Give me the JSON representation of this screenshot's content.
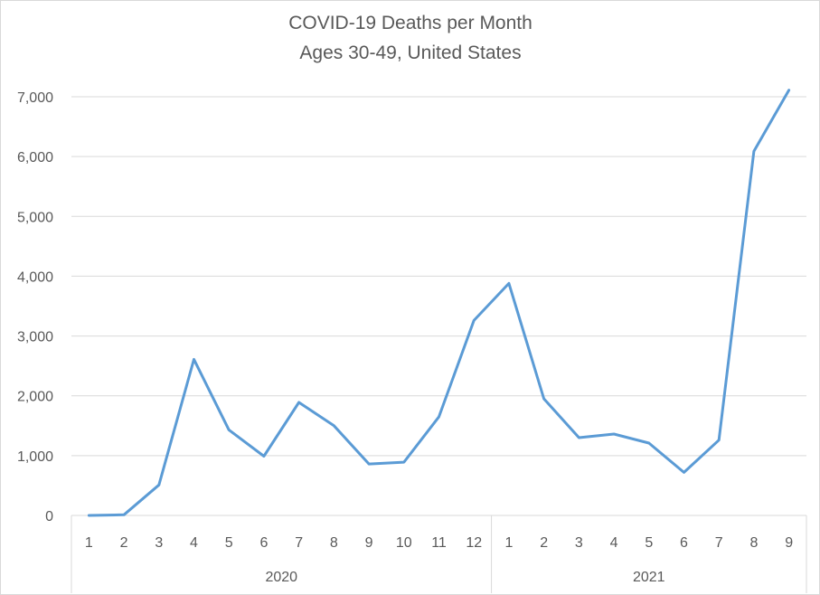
{
  "chart_data": {
    "type": "line",
    "title": "COVID-19 Deaths per Month",
    "subtitle": "Ages 30-49, United States",
    "xlabel": "",
    "ylabel": "",
    "ylim": [
      0,
      7000
    ],
    "y_ticks": [
      0,
      1000,
      2000,
      3000,
      4000,
      5000,
      6000,
      7000
    ],
    "y_tick_labels": [
      "0",
      "1,000",
      "2,000",
      "3,000",
      "4,000",
      "5,000",
      "6,000",
      "7,000"
    ],
    "grid": true,
    "legend": "none",
    "groups": [
      {
        "label": "2020",
        "months": [
          "1",
          "2",
          "3",
          "4",
          "5",
          "6",
          "7",
          "8",
          "9",
          "10",
          "11",
          "12"
        ]
      },
      {
        "label": "2021",
        "months": [
          "1",
          "2",
          "3",
          "4",
          "5",
          "6",
          "7",
          "8",
          "9"
        ]
      }
    ],
    "series": [
      {
        "name": "COVID-19 Deaths",
        "color": "#5b9bd5",
        "values": [
          0,
          10,
          510,
          2610,
          1430,
          990,
          1890,
          1500,
          860,
          890,
          1650,
          3260,
          3880,
          1950,
          1300,
          1360,
          1210,
          720,
          1260,
          6090,
          7110
        ]
      }
    ]
  }
}
